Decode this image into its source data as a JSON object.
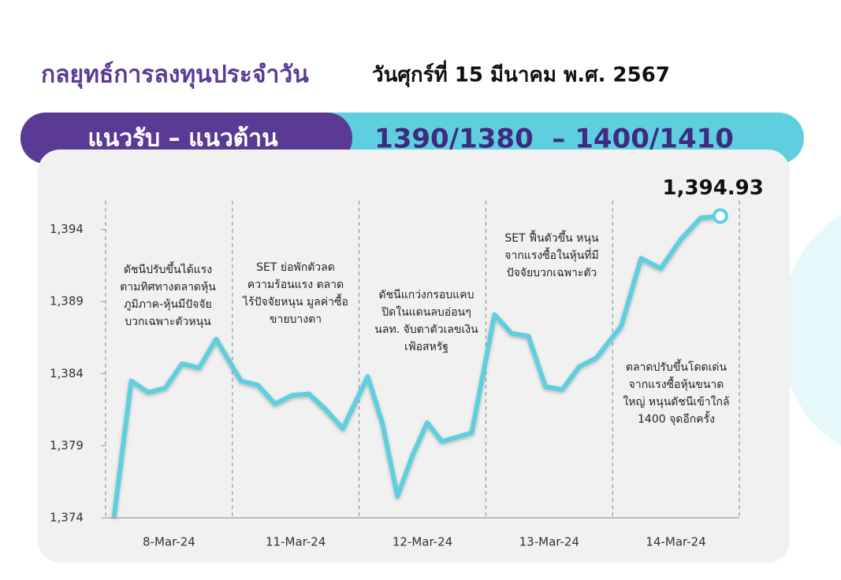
{
  "header": {
    "title": "กลยุทธ์การลงทุนประจำวัน",
    "date": "วันศุกร์ที่ 15 มีนาคม พ.ศ. 2567"
  },
  "levels": {
    "label": "แนวรับ – แนวต้าน",
    "value": "1390/1380  – 1400/1410"
  },
  "chart_data": {
    "type": "line",
    "color": "#5fcfdf",
    "ylim": [
      1374,
      1396
    ],
    "yticks": [
      {
        "value": 1374,
        "label": "1,374"
      },
      {
        "value": 1379,
        "label": "1,379"
      },
      {
        "value": 1384,
        "label": "1,384"
      },
      {
        "value": 1389,
        "label": "1,389"
      },
      {
        "value": 1394,
        "label": "1,394"
      }
    ],
    "days": [
      {
        "label": "8-Mar-24",
        "values": [
          1374.2,
          1383.5,
          1382.7,
          1383.0,
          1384.7,
          1384.4,
          1386.4
        ],
        "note": [
          "ดัชนีปรับขึ้นได้แรง",
          "ตามทิศทางตลาดหุ้น",
          "ภูมิภาค-หุ้นมีปัจจัย",
          "บวกเฉพาะตัวหนุน"
        ]
      },
      {
        "label": "11-Mar-24",
        "values": [
          1383.5,
          1383.2,
          1381.9,
          1382.5,
          1382.6,
          1381.5,
          1380.2
        ],
        "note": [
          "SET ย่อพักตัวลด",
          "ความร้อนแรง ตลาด",
          "ไร้ปัจจัยหนุน มูลค่าซื้อ",
          "ขายบางตา"
        ]
      },
      {
        "label": "12-Mar-24",
        "values": [
          1383.8,
          1380.5,
          1375.5,
          1378.3,
          1380.6,
          1379.3,
          1379.6,
          1379.9
        ],
        "note": [
          "ดัชนีแกว่งกรอบแคบ",
          "ปิดในแดนลบอ่อนๆ",
          "นลท. จับตาตัวเลขเงิน",
          "เฟ้อสหรัฐ"
        ]
      },
      {
        "label": "13-Mar-24",
        "values": [
          1388.1,
          1386.8,
          1386.6,
          1383.1,
          1382.9,
          1384.5,
          1385.1
        ],
        "note": [
          "SET ฟื้นตัวขึ้น หนุน",
          "จากแรงซื้อในหุ้นที่มี",
          "ปัจจัยบวกเฉพาะตัว"
        ]
      },
      {
        "label": "14-Mar-24",
        "values": [
          1387.3,
          1392.0,
          1391.3,
          1393.3,
          1394.8,
          1394.93
        ],
        "value_labels": [
          null,
          null,
          null,
          null,
          null,
          "1,394.93"
        ],
        "note": [
          "ตลาดปรับขึ้นโดดเด่น",
          "จากแรงซื้อหุ้นขนาด",
          "ใหญ่ หนุนดัชนีเข้าใกล้",
          "1400 จุดอีกครั้ง"
        ]
      }
    ]
  }
}
